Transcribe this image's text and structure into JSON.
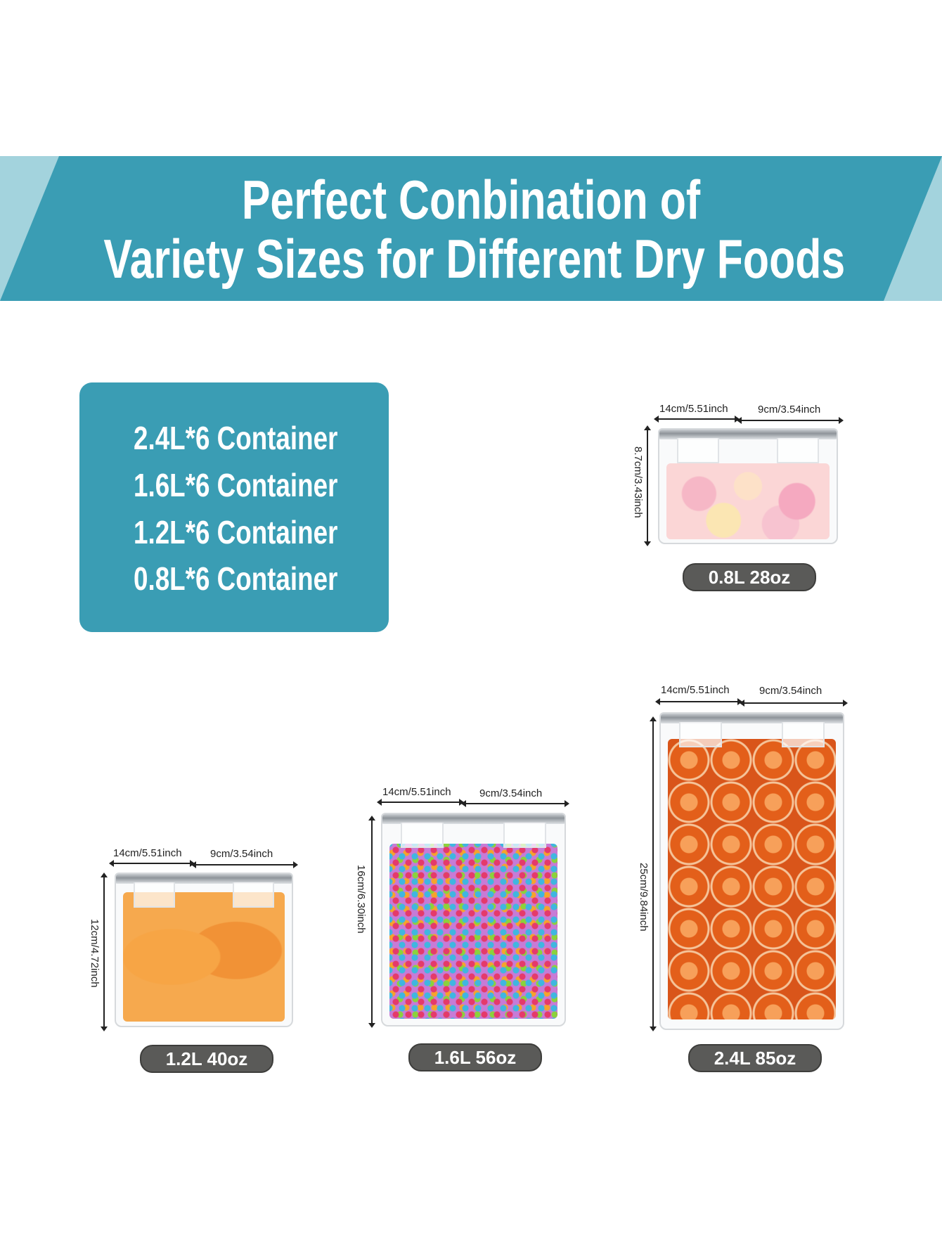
{
  "banner": {
    "title_line1": "Perfect Conbination of",
    "title_line2": "Variety Sizes for Different Dry Foods",
    "color": "#3a9db4"
  },
  "specs": {
    "items": [
      "2.4L*6 Container",
      "1.6L*6 Container",
      "1.2L*6 Container",
      "0.8L*6 Container"
    ]
  },
  "containers": [
    {
      "label": "0.8L 28oz",
      "length": "14cm/5.51inch",
      "width": "9cm/3.54inch",
      "height": "8.7cm/3.43inch",
      "food": "marshmallows"
    },
    {
      "label": "1.2L 40oz",
      "length": "14cm/5.51inch",
      "width": "9cm/3.54inch",
      "height": "12cm/4.72inch",
      "food": "dried mango"
    },
    {
      "label": "1.6L 56oz",
      "length": "14cm/5.51inch",
      "width": "9cm/3.54inch",
      "height": "16cm/6.30inch",
      "food": "cereal loops"
    },
    {
      "label": "2.4L 85oz",
      "length": "14cm/5.51inch",
      "width": "9cm/3.54inch",
      "height": "25cm/9.84inch",
      "food": "dried orange slices"
    }
  ]
}
